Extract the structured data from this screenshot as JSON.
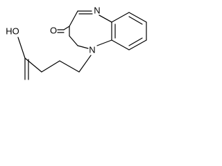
{
  "atoms": [
    {
      "label": "HO"
    },
    {
      "label": "O"
    },
    {
      "label": "N"
    },
    {
      "label": "N"
    }
  ]
}
